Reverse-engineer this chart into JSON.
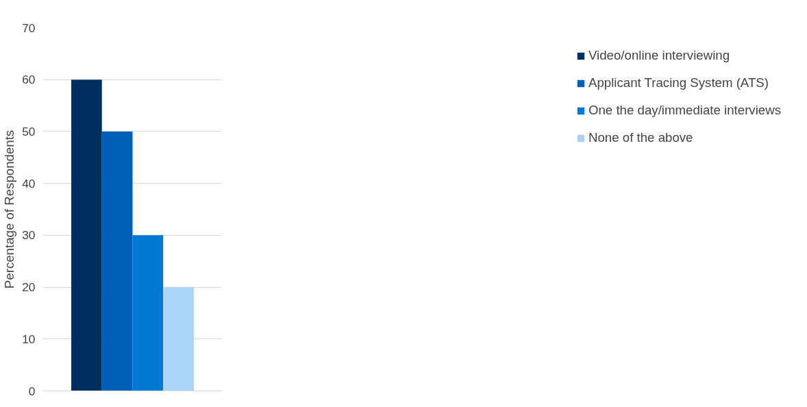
{
  "chart_data": {
    "type": "bar",
    "ylabel": "Percentage of Respondents",
    "categories": [
      null
    ],
    "series": [
      {
        "name": "Video/online interviewing",
        "color": "#002f5f",
        "values": [
          60
        ]
      },
      {
        "name": "Applicant Tracing System (ATS)",
        "color": "#005fb8",
        "values": [
          50
        ]
      },
      {
        "name": "One the day/immediate interviews",
        "color": "#0078d4",
        "values": [
          30
        ]
      },
      {
        "name": "None of the above",
        "color": "#a9d4f5",
        "values": [
          20
        ]
      }
    ],
    "ylim": [
      0,
      70
    ],
    "yticks": [
      0,
      10,
      20,
      30,
      40,
      50,
      60,
      70
    ],
    "grid": "y",
    "legend": "right"
  }
}
